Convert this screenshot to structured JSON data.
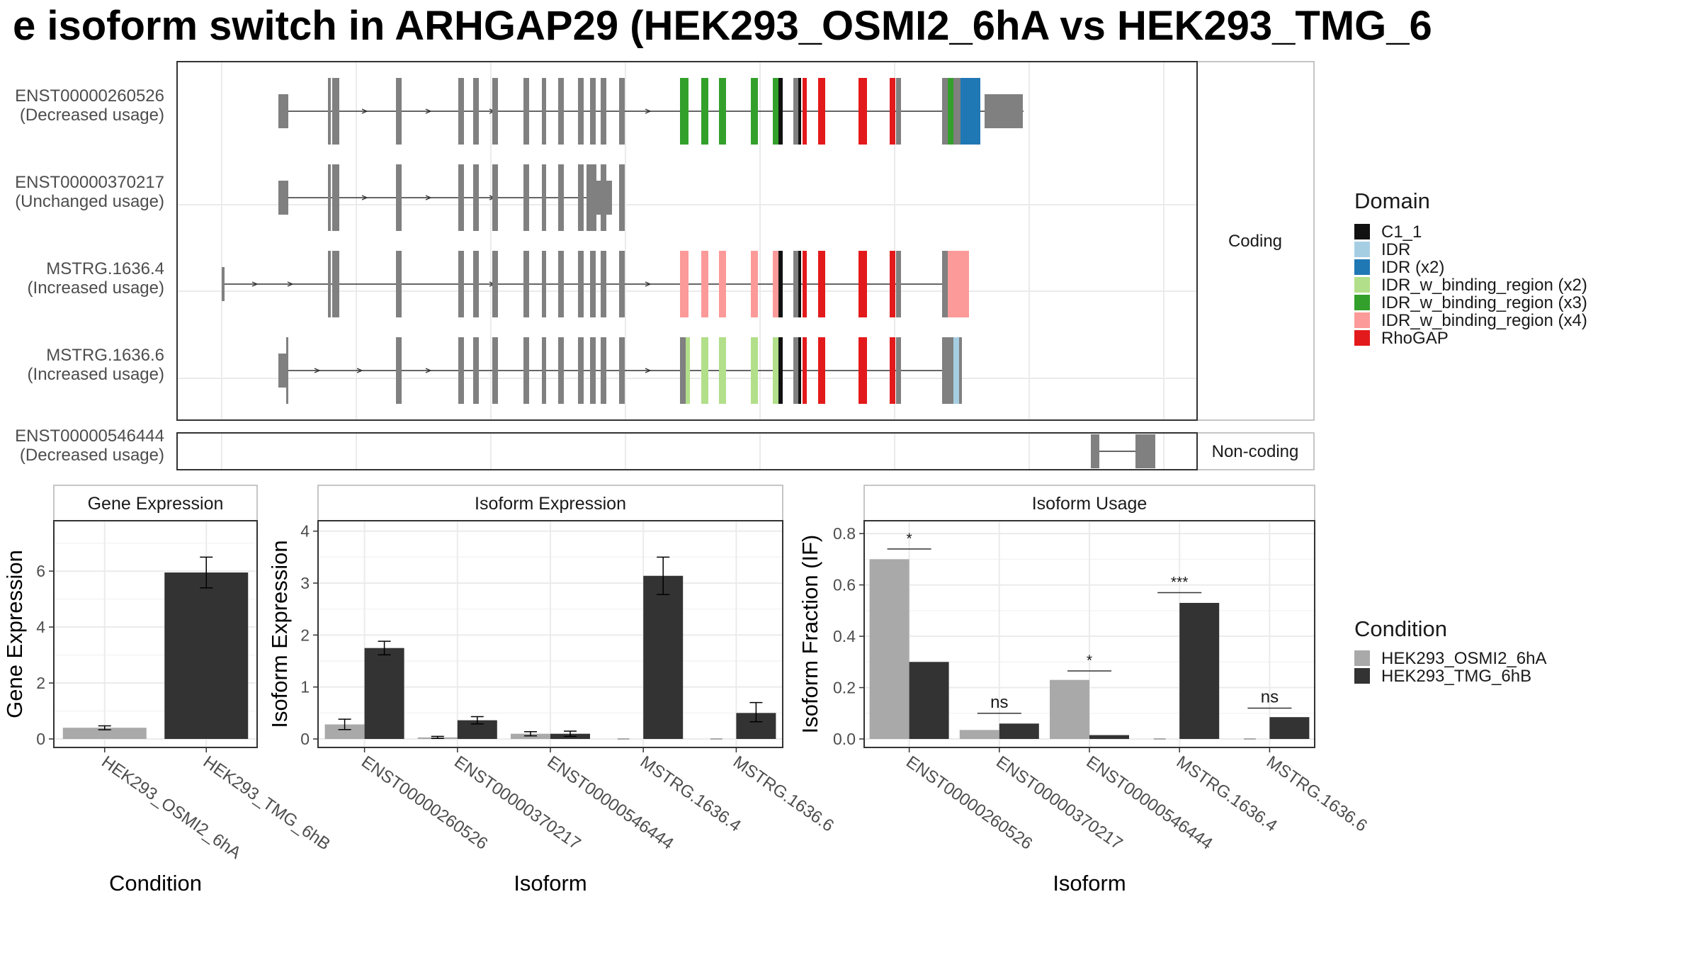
{
  "title": "e isoform switch in ARHGAP29 (HEK293_OSMI2_6hA vs HEK293_TMG_6",
  "colors": {
    "exon_default": "#808080",
    "cond_a": "#a9a9a9",
    "cond_b": "#333333",
    "panel_border": "#333333",
    "grid": "#ebebeb",
    "strip_border": "#b3b3b3"
  },
  "chart_data": [
    {
      "type": "gene-structure",
      "facet_labels": [
        "Coding",
        "Non-coding"
      ],
      "transcripts": [
        {
          "id": "ENST00000260526",
          "usage": "(Decreased usage)",
          "facet": "Coding"
        },
        {
          "id": "ENST00000370217",
          "usage": "(Unchanged usage)",
          "facet": "Coding"
        },
        {
          "id": "MSTRG.1636.4",
          "usage": "(Increased usage)",
          "facet": "Coding"
        },
        {
          "id": "MSTRG.1636.6",
          "usage": "(Increased usage)",
          "facet": "Coding"
        },
        {
          "id": "ENST00000546444",
          "usage": "(Decreased usage)",
          "facet": "Non-coding"
        }
      ],
      "legend": {
        "title": "Domain",
        "entries": [
          {
            "label": "C1_1",
            "color": "#111111"
          },
          {
            "label": "IDR",
            "color": "#a6cee3"
          },
          {
            "label": "IDR (x2)",
            "color": "#1f78b4"
          },
          {
            "label": "IDR_w_binding_region (x2)",
            "color": "#b2df8a"
          },
          {
            "label": "IDR_w_binding_region (x3)",
            "color": "#33a02c"
          },
          {
            "label": "IDR_w_binding_region (x4)",
            "color": "#fb9a99"
          },
          {
            "label": "RhoGAP",
            "color": "#e31a1c"
          }
        ]
      }
    },
    {
      "type": "bar",
      "strip": "Gene Expression",
      "xlabel": "Condition",
      "ylabel": "Gene Expression",
      "yticks": [
        "0",
        "2",
        "4",
        "6"
      ],
      "ylim": [
        0,
        7.8
      ],
      "categories": [
        "HEK293_OSMI2_6hA",
        "HEK293_TMG_6hB"
      ],
      "values": [
        0.4,
        5.95
      ],
      "errors": [
        [
          0.33,
          0.47
        ],
        [
          5.4,
          6.5
        ]
      ]
    },
    {
      "type": "bar",
      "strip": "Isoform Expression",
      "xlabel": "Isoform",
      "ylabel": "Isoform Expression",
      "yticks": [
        "0",
        "1",
        "2",
        "3",
        "4"
      ],
      "ylim": [
        0,
        4.2
      ],
      "categories": [
        "ENST00000260526",
        "ENST00000370217",
        "ENST00000546444",
        "MSTRG.1636.4",
        "MSTRG.1636.6"
      ],
      "series": [
        {
          "values": [
            0.28,
            0.03,
            0.1,
            0.0,
            0.0
          ],
          "errors": [
            [
              0.18,
              0.38
            ],
            [
              0.01,
              0.05
            ],
            [
              0.06,
              0.14
            ],
            [
              0.0,
              0.0
            ],
            [
              0.0,
              0.0
            ]
          ]
        },
        {
          "values": [
            1.75,
            0.36,
            0.1,
            3.14,
            0.5
          ],
          "errors": [
            [
              1.62,
              1.88
            ],
            [
              0.29,
              0.43
            ],
            [
              0.05,
              0.15
            ],
            [
              2.78,
              3.5
            ],
            [
              0.33,
              0.7
            ]
          ]
        }
      ]
    },
    {
      "type": "bar",
      "strip": "Isoform Usage",
      "xlabel": "Isoform",
      "ylabel": "Isoform Fraction (IF)",
      "yticks": [
        "0.0",
        "0.2",
        "0.4",
        "0.6",
        "0.8"
      ],
      "ylim": [
        0,
        0.85
      ],
      "categories": [
        "ENST00000260526",
        "ENST00000370217",
        "ENST00000546444",
        "MSTRG.1636.4",
        "MSTRG.1636.6"
      ],
      "series": [
        {
          "values": [
            0.7,
            0.035,
            0.23,
            0.0,
            0.0
          ]
        },
        {
          "values": [
            0.3,
            0.06,
            0.015,
            0.53,
            0.085
          ]
        }
      ],
      "significance": [
        "*",
        "ns",
        "*",
        "***",
        "ns"
      ],
      "sig_levels": [
        0.74,
        0.1,
        0.265,
        0.57,
        0.12
      ]
    }
  ],
  "condition_legend": {
    "title": "Condition",
    "entries": [
      "HEK293_OSMI2_6hA",
      "HEK293_TMG_6hB"
    ]
  }
}
